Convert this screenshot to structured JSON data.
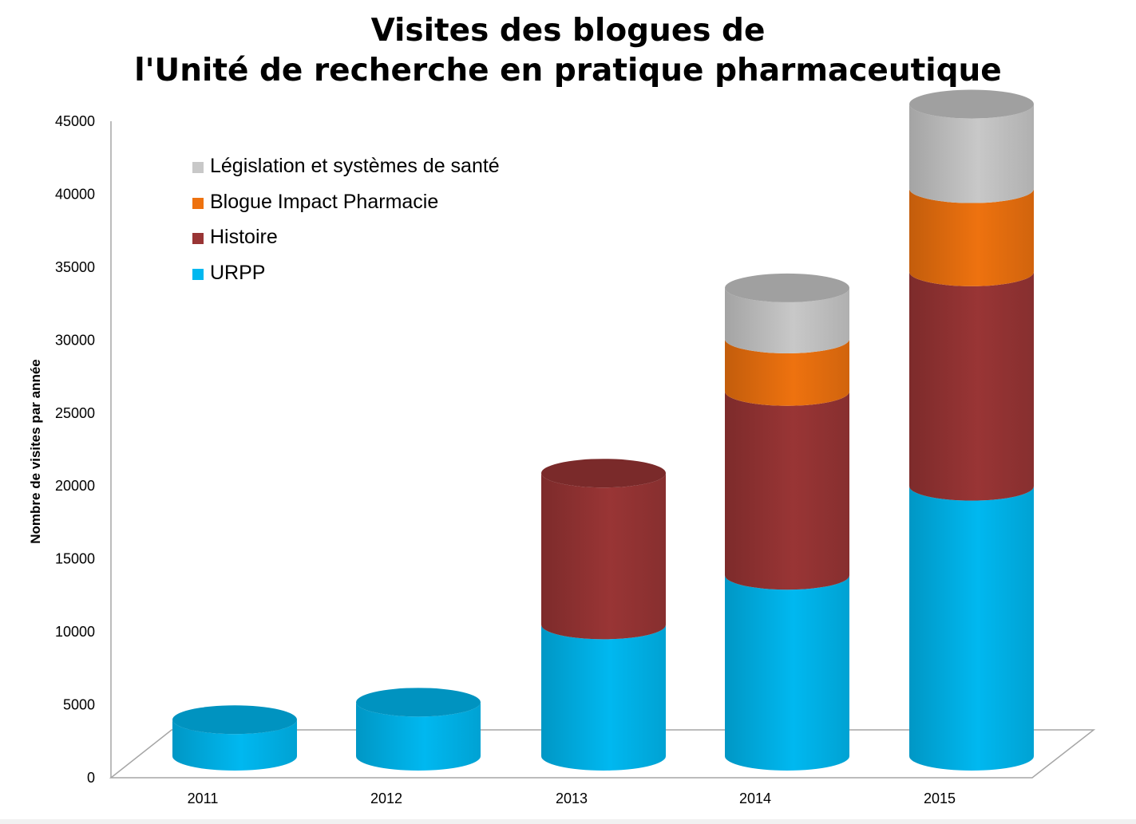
{
  "chart_data": {
    "type": "bar",
    "stacked": true,
    "style": "3d-cylinder",
    "title": [
      "Visites des blogues de",
      "l'Unité de recherche en pratique pharmaceutique"
    ],
    "xlabel": "",
    "ylabel": "Nombre de visites par année",
    "categories": [
      "2011",
      "2012",
      "2013",
      "2014",
      "2015"
    ],
    "ylim": [
      0,
      45000
    ],
    "yticks": [
      0,
      5000,
      10000,
      15000,
      20000,
      25000,
      30000,
      35000,
      40000,
      45000
    ],
    "grid": false,
    "legend_position": "top-left",
    "series": [
      {
        "name": "URPP",
        "color": "#00B8F0",
        "values": [
          2500,
          3700,
          9000,
          12400,
          18500
        ]
      },
      {
        "name": "Histoire",
        "color": "#993535",
        "values": [
          0,
          0,
          10400,
          12600,
          14700
        ]
      },
      {
        "name": "Blogue Impact Pharmacie",
        "color": "#EE720F",
        "values": [
          0,
          0,
          0,
          3600,
          5700
        ]
      },
      {
        "name": "Législation et systèmes de santé",
        "color": "#C8C8C8",
        "values": [
          0,
          0,
          0,
          3500,
          5800
        ]
      }
    ]
  }
}
